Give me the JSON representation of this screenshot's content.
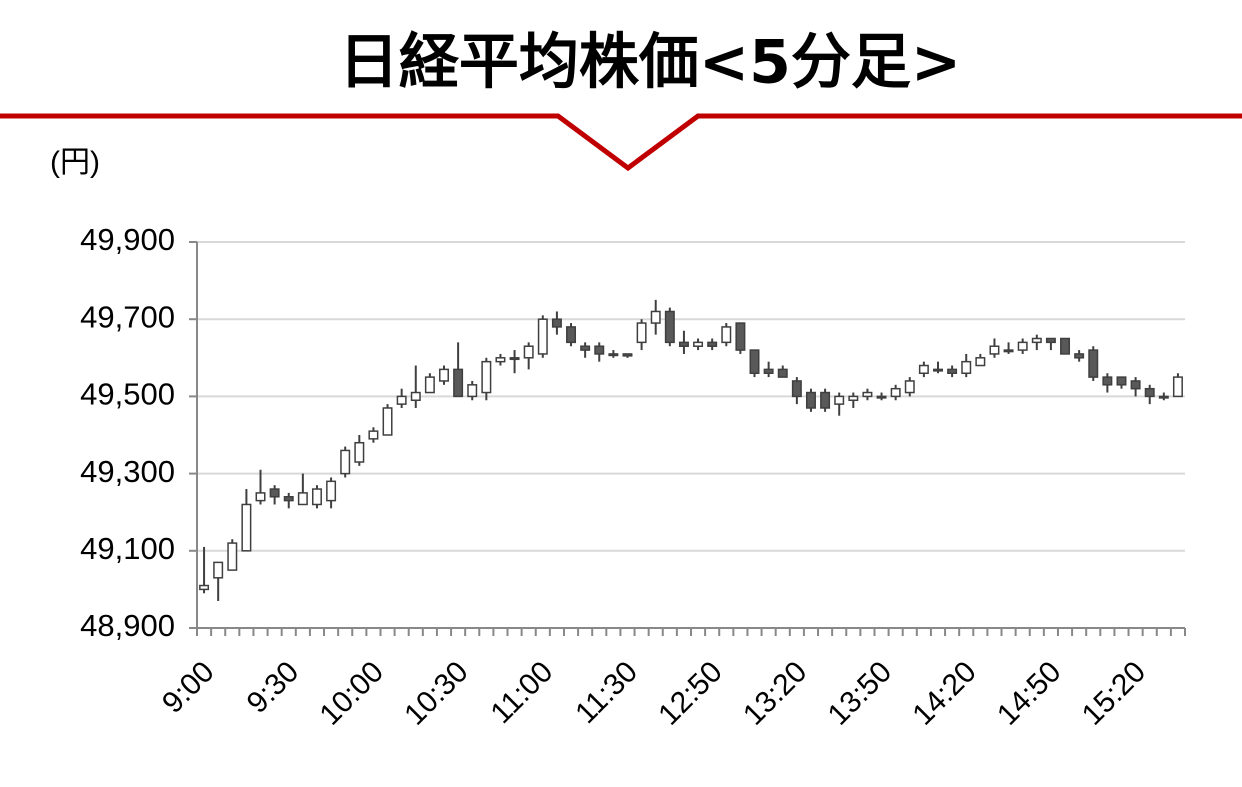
{
  "chart_data": {
    "type": "candlestick",
    "title": "日経平均株価<5分足>",
    "y_unit": "(円)",
    "categories": [
      "9:00",
      null,
      null,
      null,
      null,
      null,
      "9:30",
      null,
      null,
      null,
      null,
      null,
      "10:00",
      null,
      null,
      null,
      null,
      null,
      "10:30",
      null,
      null,
      null,
      null,
      null,
      "11:00",
      null,
      null,
      null,
      null,
      null,
      "11:30",
      null,
      null,
      null,
      null,
      null,
      "12:50",
      null,
      null,
      null,
      null,
      null,
      "13:20",
      null,
      null,
      null,
      null,
      null,
      "13:50",
      null,
      null,
      null,
      null,
      null,
      "14:20",
      null,
      null,
      null,
      null,
      null,
      "14:50",
      null,
      null,
      null,
      null,
      null,
      "15:20",
      null,
      null,
      null
    ],
    "open": [
      49000,
      49030,
      49050,
      49100,
      49230,
      49260,
      49240,
      49220,
      49220,
      49230,
      49300,
      49330,
      49390,
      49400,
      49480,
      49490,
      49510,
      49540,
      49570,
      49500,
      49510,
      49590,
      49600,
      49600,
      49610,
      49700,
      49680,
      49630,
      49630,
      49610,
      49610,
      49640,
      49690,
      49720,
      49640,
      49630,
      49640,
      49640,
      49690,
      49620,
      49570,
      49570,
      49540,
      49510,
      49510,
      49480,
      49490,
      49500,
      49500,
      49500,
      49510,
      49560,
      49570,
      49570,
      49560,
      49580,
      49610,
      49620,
      49620,
      49640,
      49650,
      49650,
      49610,
      49620,
      49550,
      49550,
      49540,
      49520,
      49500,
      49500
    ],
    "high": [
      49110,
      49070,
      49130,
      49260,
      49310,
      49270,
      49250,
      49300,
      49270,
      49290,
      49370,
      49400,
      49420,
      49480,
      49520,
      49580,
      49560,
      49580,
      49640,
      49540,
      49600,
      49610,
      49620,
      49640,
      49710,
      49720,
      49690,
      49640,
      49640,
      49620,
      49610,
      49700,
      49750,
      49730,
      49670,
      49650,
      49650,
      49690,
      49690,
      49620,
      49590,
      49580,
      49550,
      49520,
      49520,
      49510,
      49510,
      49520,
      49510,
      49530,
      49550,
      49590,
      49590,
      49580,
      49610,
      49610,
      49650,
      49640,
      49650,
      49660,
      49650,
      49650,
      49620,
      49630,
      49560,
      49550,
      49550,
      49530,
      49510,
      49560
    ],
    "low": [
      48990,
      48970,
      49050,
      49100,
      49220,
      49220,
      49210,
      49220,
      49210,
      49210,
      49290,
      49320,
      49380,
      49400,
      49470,
      49470,
      49510,
      49530,
      49500,
      49490,
      49490,
      49580,
      49560,
      49570,
      49600,
      49660,
      49630,
      49600,
      49590,
      49600,
      49600,
      49620,
      49660,
      49630,
      49610,
      49620,
      49620,
      49630,
      49610,
      49550,
      49550,
      49550,
      49480,
      49460,
      49460,
      49450,
      49470,
      49490,
      49490,
      49490,
      49500,
      49550,
      49560,
      49550,
      49550,
      49580,
      49600,
      49610,
      49610,
      49620,
      49620,
      49610,
      49590,
      49540,
      49510,
      49520,
      49500,
      49480,
      49490,
      49500
    ],
    "close": [
      49010,
      49070,
      49120,
      49220,
      49250,
      49240,
      49230,
      49250,
      49260,
      49280,
      49360,
      49380,
      49410,
      49470,
      49500,
      49510,
      49550,
      49570,
      49500,
      49530,
      49590,
      49600,
      49600,
      49630,
      49700,
      49680,
      49640,
      49620,
      49610,
      49610,
      49605,
      49690,
      49720,
      49640,
      49630,
      49640,
      49630,
      49680,
      49620,
      49560,
      49560,
      49550,
      49500,
      49470,
      49470,
      49500,
      49500,
      49510,
      49500,
      49520,
      49540,
      49580,
      49570,
      49560,
      49590,
      49600,
      49630,
      49620,
      49640,
      49650,
      49640,
      49610,
      49600,
      49550,
      49530,
      49530,
      49520,
      49500,
      49500,
      49550
    ],
    "up_color": "#ffffff",
    "down_color": "#595959",
    "edge_color": "#3f3f3f",
    "ylim": [
      48900,
      49900
    ],
    "yticks": [
      {
        "value": 48900,
        "label": "48,900"
      },
      {
        "value": 49100,
        "label": "49,100"
      },
      {
        "value": 49300,
        "label": "49,300"
      },
      {
        "value": 49500,
        "label": "49,500"
      },
      {
        "value": 49700,
        "label": "49,700"
      },
      {
        "value": 49900,
        "label": "49,900"
      }
    ],
    "grid": true
  }
}
